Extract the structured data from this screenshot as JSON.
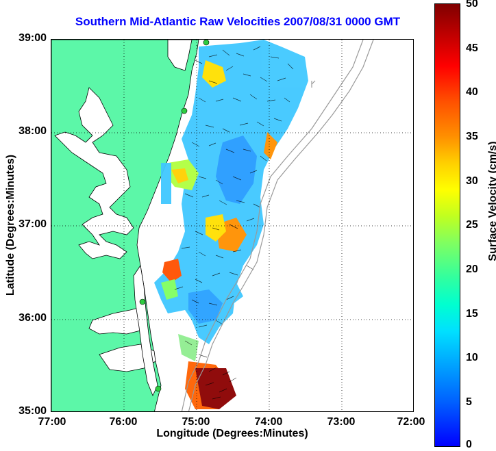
{
  "title": "Southern Mid-Atlantic Raw Velocities 2007/08/31 0000 GMT",
  "xlabel": "Longitude (Degrees:Minutes)",
  "ylabel": "Latitude (Degrees:Minutes)",
  "colorbar_label": "Surface Velocity (cm/s)",
  "x_ticks": [
    "77:00",
    "76:00",
    "75:00",
    "74:00",
    "73:00",
    "72:00"
  ],
  "y_ticks": [
    "39:00",
    "38:00",
    "37:00",
    "36:00",
    "35:00"
  ],
  "colorbar_ticks": [
    "50",
    "45",
    "40",
    "35",
    "30",
    "25",
    "20",
    "15",
    "10",
    "5",
    "0"
  ],
  "colors": {
    "land": "#5cf7a8",
    "title": "#0000ff",
    "grid": "#000000",
    "isobath": "#999999",
    "site": "#2ecc40"
  },
  "chart_data": {
    "type": "heatmap",
    "title": "Southern Mid-Atlantic Raw Velocities 2007/08/31 0000 GMT",
    "xlabel": "Longitude (Degrees:Minutes)",
    "ylabel": "Latitude (Degrees:Minutes)",
    "xlim": [
      -77.0,
      -72.0
    ],
    "ylim": [
      35.0,
      39.0
    ],
    "colorbar": {
      "label": "Surface Velocity (cm/s)",
      "range": [
        0,
        50
      ]
    },
    "grid": true
  }
}
